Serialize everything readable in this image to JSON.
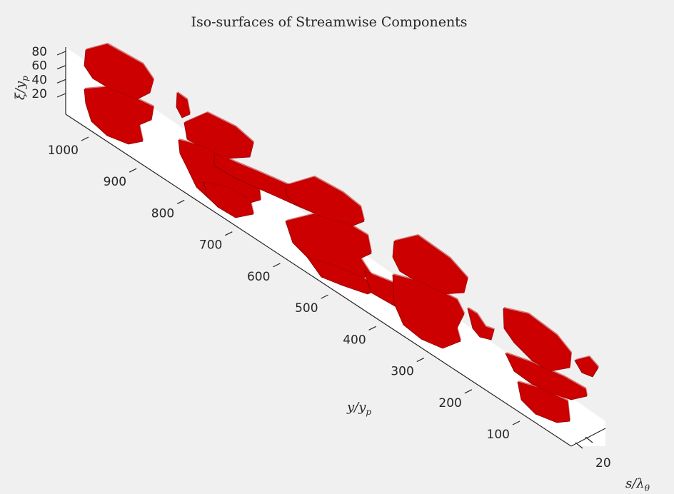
{
  "chart_data": {
    "type": "isosurface-3d",
    "title": "Iso-surfaces of Streamwise Components",
    "xlabel": "y/y_p",
    "ylabel": "s/λ_θ",
    "zlabel": "ξ/y_p",
    "x_ticks": [
      100,
      200,
      300,
      400,
      500,
      600,
      700,
      800,
      900,
      1000
    ],
    "y_ticks": [
      20
    ],
    "z_ticks": [
      20,
      40,
      60,
      80
    ],
    "grid": false,
    "surface_color": "#cc0000",
    "background_color": "#f0f0f0",
    "plot_box_color": "#ffffff"
  },
  "labels": {
    "xlabel_main": "y/y",
    "xlabel_sub": "p",
    "ylabel_main": "s/λ",
    "ylabel_sub": "θ",
    "zlabel_main": "ξ/y",
    "zlabel_sub": "p"
  }
}
